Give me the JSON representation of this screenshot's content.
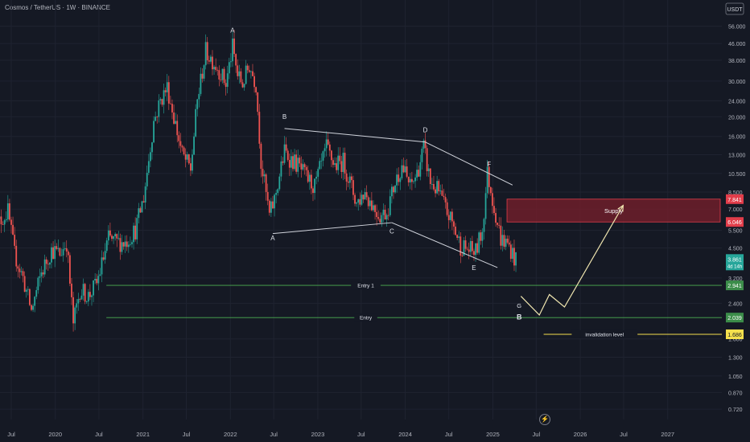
{
  "header": {
    "title": "Cosmos / TetherUS · 1W · BINANCE",
    "currency": "USDT"
  },
  "colors": {
    "background": "#151924",
    "up": "#26a69a",
    "down": "#ef5350",
    "wave": "#d1d4dc",
    "entry": "#4caf50",
    "supply_fill": "#7a1f2b",
    "supply_border": "#e23d4a",
    "invalidation": "#f5e04d",
    "projection": "#f0e6b0"
  },
  "chart_data": {
    "type": "candlestick",
    "symbol": "ATOMUSDT",
    "exchange": "BINANCE",
    "interval": "1W",
    "y_scale": "log",
    "ylim": [
      0.64,
      64
    ],
    "xlim": [
      "2019-05-15",
      "2027-08-15"
    ],
    "y_ticks": [
      0.72,
      0.87,
      1.05,
      1.3,
      1.6,
      2.4,
      3.2,
      4.5,
      5.5,
      7.0,
      8.5,
      10.5,
      13.0,
      16.0,
      20.0,
      24.0,
      30.0,
      38.0,
      46.0,
      56.0
    ],
    "y_tick_labels": [
      "0.720",
      "0.870",
      "1.050",
      "1.300",
      "1.600",
      "2.400",
      "3.200",
      "4.500",
      "5.500",
      "7.000",
      "8.500",
      "10.500",
      "13.000",
      "16.000",
      "20.000",
      "24.000",
      "30.000",
      "38.000",
      "46.000",
      "56.000"
    ],
    "x_ticks": [
      {
        "date": "2019-07-01",
        "label": "Jul"
      },
      {
        "date": "2020-01-01",
        "label": "2020"
      },
      {
        "date": "2020-07-01",
        "label": "Jul"
      },
      {
        "date": "2021-01-01",
        "label": "2021"
      },
      {
        "date": "2021-07-01",
        "label": "Jul"
      },
      {
        "date": "2022-01-01",
        "label": "2022"
      },
      {
        "date": "2022-07-01",
        "label": "Jul"
      },
      {
        "date": "2023-01-01",
        "label": "2023"
      },
      {
        "date": "2023-07-01",
        "label": "Jul"
      },
      {
        "date": "2024-01-01",
        "label": "2024"
      },
      {
        "date": "2024-07-01",
        "label": "Jul"
      },
      {
        "date": "2025-01-01",
        "label": "2025"
      },
      {
        "date": "2025-07-01",
        "label": "Jul"
      },
      {
        "date": "2026-01-01",
        "label": "2026"
      },
      {
        "date": "2026-07-01",
        "label": "Jul"
      },
      {
        "date": "2027-01-01",
        "label": "2027"
      }
    ],
    "price_path": [
      [
        "2019-04-22",
        5.6
      ],
      [
        "2019-05-20",
        6.2
      ],
      [
        "2019-06-17",
        6.8
      ],
      [
        "2019-07-15",
        4.2
      ],
      [
        "2019-08-19",
        3.2
      ],
      [
        "2019-09-23",
        2.2
      ],
      [
        "2019-11-04",
        3.4
      ],
      [
        "2019-12-16",
        4.4
      ],
      [
        "2020-01-20",
        4.2
      ],
      [
        "2020-02-17",
        4.8
      ],
      [
        "2020-03-16",
        1.9
      ],
      [
        "2020-04-13",
        2.8
      ],
      [
        "2020-05-18",
        2.6
      ],
      [
        "2020-06-22",
        3.0
      ],
      [
        "2020-08-10",
        5.0
      ],
      [
        "2020-09-14",
        4.8
      ],
      [
        "2020-10-19",
        4.8
      ],
      [
        "2020-11-30",
        5.5
      ],
      [
        "2021-01-04",
        8.0
      ],
      [
        "2021-02-15",
        19.0
      ],
      [
        "2021-03-15",
        24.0
      ],
      [
        "2021-04-12",
        28.0
      ],
      [
        "2021-05-10",
        20.0
      ],
      [
        "2021-06-14",
        13.0
      ],
      [
        "2021-07-19",
        11.0
      ],
      [
        "2021-08-16",
        24.0
      ],
      [
        "2021-09-20",
        42.0
      ],
      [
        "2021-10-18",
        38.0
      ],
      [
        "2021-11-15",
        34.0
      ],
      [
        "2021-12-13",
        29.0
      ],
      [
        "2022-01-10",
        44.0
      ],
      [
        "2022-01-31",
        32.0
      ],
      [
        "2022-02-21",
        29.0
      ],
      [
        "2022-03-21",
        36.0
      ],
      [
        "2022-04-18",
        29.0
      ],
      [
        "2022-05-09",
        12.0
      ],
      [
        "2022-06-13",
        6.5
      ],
      [
        "2022-07-04",
        7.8
      ],
      [
        "2022-08-15",
        13.5
      ],
      [
        "2022-09-05",
        12.5
      ],
      [
        "2022-10-10",
        11.5
      ],
      [
        "2022-11-14",
        10.0
      ],
      [
        "2022-12-19",
        9.0
      ],
      [
        "2023-02-06",
        14.0
      ],
      [
        "2023-03-13",
        11.5
      ],
      [
        "2023-04-17",
        12.0
      ],
      [
        "2023-05-15",
        9.5
      ],
      [
        "2023-06-12",
        7.5
      ],
      [
        "2023-07-17",
        8.5
      ],
      [
        "2023-08-21",
        7.2
      ],
      [
        "2023-09-18",
        6.5
      ],
      [
        "2023-10-16",
        6.8
      ],
      [
        "2023-11-20",
        9.5
      ],
      [
        "2023-12-18",
        11.5
      ],
      [
        "2024-01-22",
        9.0
      ],
      [
        "2024-02-19",
        10.5
      ],
      [
        "2024-03-18",
        14.0
      ],
      [
        "2024-04-15",
        9.5
      ],
      [
        "2024-05-20",
        8.5
      ],
      [
        "2024-06-17",
        7.0
      ],
      [
        "2024-07-15",
        6.0
      ],
      [
        "2024-08-19",
        4.6
      ],
      [
        "2024-09-23",
        4.4
      ],
      [
        "2024-10-21",
        4.3
      ],
      [
        "2024-11-18",
        5.5
      ],
      [
        "2024-12-09",
        10.5
      ],
      [
        "2025-01-06",
        7.2
      ],
      [
        "2025-02-03",
        5.0
      ],
      [
        "2025-03-10",
        4.6
      ],
      [
        "2025-04-07",
        3.861
      ]
    ],
    "wave_labels": [
      {
        "label": "A",
        "date": "2022-01-10",
        "price": 52.0
      },
      {
        "label": "B",
        "date": "2022-08-15",
        "price": 19.5
      },
      {
        "label": "D",
        "date": "2024-03-25",
        "price": 16.8
      },
      {
        "label": "F",
        "date": "2024-12-16",
        "price": 11.4
      },
      {
        "label": "A",
        "date": "2022-06-27",
        "price": 4.9
      },
      {
        "label": "C",
        "date": "2023-11-06",
        "price": 5.3
      },
      {
        "label": "E",
        "date": "2024-10-14",
        "price": 3.5
      }
    ],
    "trendlines": [
      {
        "name": "upper-b-d",
        "points": [
          [
            "2022-08-15",
            17.5
          ],
          [
            "2024-03-25",
            15.0
          ]
        ]
      },
      {
        "name": "upper-d-f",
        "points": [
          [
            "2024-03-25",
            15.0
          ],
          [
            "2025-03-24",
            9.2
          ]
        ]
      },
      {
        "name": "lower-a-c",
        "points": [
          [
            "2022-06-27",
            5.3
          ],
          [
            "2023-11-06",
            6.0
          ]
        ]
      },
      {
        "name": "lower-c-e",
        "points": [
          [
            "2023-11-06",
            6.0
          ],
          [
            "2025-01-20",
            3.6
          ]
        ]
      }
    ],
    "levels": [
      {
        "name": "Entry 1",
        "label": "Entry 1",
        "price": 2.941,
        "price_label": "2.941",
        "from": "2020-08-01",
        "color": "#4caf50"
      },
      {
        "name": "Entry",
        "label": "Entry",
        "price": 2.039,
        "price_label": "2.039",
        "from": "2020-08-01",
        "color": "#4caf50"
      },
      {
        "name": "invalidation",
        "label": "invalidation level",
        "price": 1.686,
        "price_label": "1.686",
        "from": "2025-08-01",
        "color": "#f5e04d"
      }
    ],
    "zone": {
      "label": "Supply",
      "from": "2025-03-01",
      "to": "2027-08-15",
      "low": 6.046,
      "high": 7.841,
      "low_label": "6.046",
      "high_label": "7.841"
    },
    "current_price": {
      "value": 3.861,
      "label": "3.861",
      "countdown": "4d 14h"
    },
    "projection": [
      [
        "2025-04-28",
        2.6
      ],
      [
        "2025-07-14",
        2.1
      ],
      [
        "2025-08-25",
        2.65
      ],
      [
        "2025-10-27",
        2.3
      ],
      [
        "2026-06-29",
        7.3
      ]
    ],
    "projection_labels": [
      {
        "label": "G",
        "date": "2025-04-21",
        "price": 2.28
      },
      {
        "label": "B",
        "date": "2025-04-21",
        "price": 2.0
      }
    ]
  }
}
